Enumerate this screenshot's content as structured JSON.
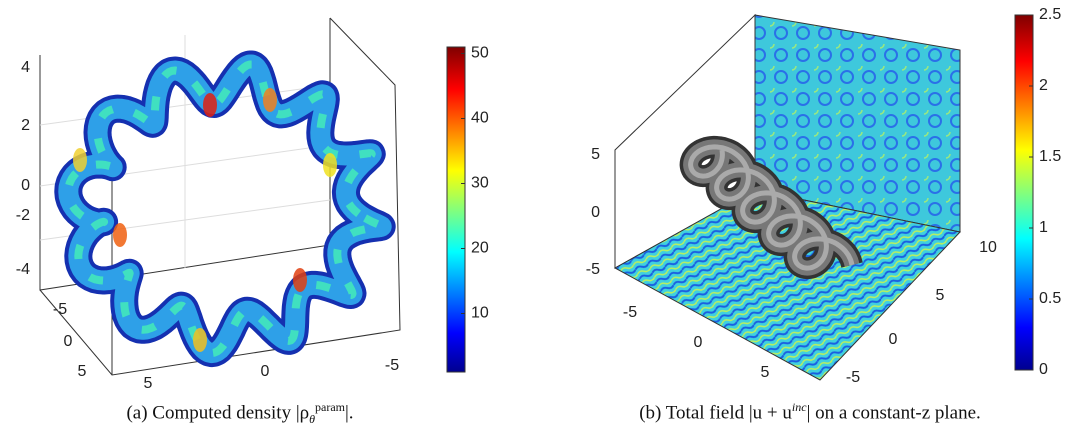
{
  "chart_data": [
    {
      "type": "tube",
      "zticks": [
        4,
        2,
        0,
        -2,
        -4
      ],
      "yticks": [
        -5,
        0,
        5
      ],
      "xticks": [
        5,
        0,
        -5
      ],
      "colorbar": {
        "clim": [
          1,
          51
        ],
        "ticks": [
          10,
          20,
          30,
          40,
          50
        ]
      },
      "caption": {
        "prefix": "(a) Computed density |ρ",
        "sub": "θ",
        "sup": "param",
        "suffix": "|."
      }
    },
    {
      "type": "field",
      "zticks": [
        5,
        0,
        -5
      ],
      "xticks": [
        -5,
        0,
        5
      ],
      "yticks": [
        10,
        5,
        0,
        -5
      ],
      "colorbar": {
        "clim": [
          0,
          2.5
        ],
        "ticks": [
          0,
          0.5,
          1,
          1.5,
          2,
          2.5
        ]
      },
      "caption": {
        "prefix": "(b) Total field |u + u",
        "sup": "inc",
        "suffix": "| on a constant-z plane."
      }
    }
  ]
}
